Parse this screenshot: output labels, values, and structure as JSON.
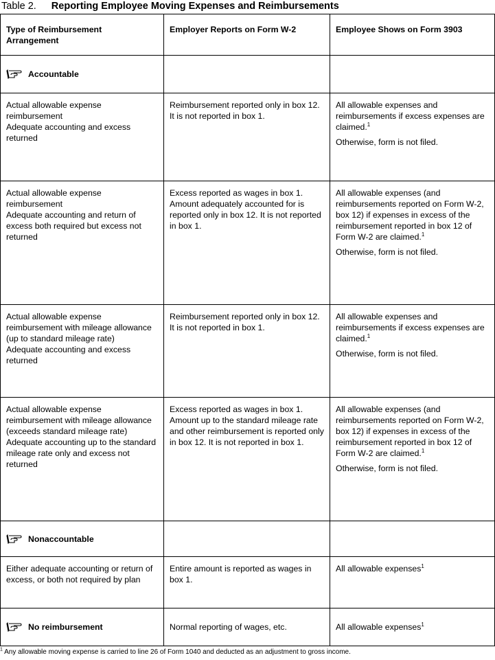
{
  "title": {
    "number": "Table 2.",
    "name": "Reporting Employee Moving Expenses and Reimbursements"
  },
  "columns": [
    "Type of Reimbursement Arrangement",
    "Employer Reports on Form W-2",
    "Employee Shows on Form 3903"
  ],
  "icon": "pointing-hand-icon",
  "sections": {
    "accountable": "Accountable",
    "nonaccountable": "Nonaccountable",
    "no_reimbursement": {
      "label": "No reimbursement",
      "employer": "Normal reporting of wages, etc.",
      "employee": "All allowable expenses",
      "note": "1"
    }
  },
  "rows": [
    {
      "type": [
        "Actual allowable expense reimbursement",
        "Adequate accounting and excess returned"
      ],
      "employer": "Reimbursement reported only in box 12. It is not reported in box 1.",
      "employee": [
        "All allowable expenses and reimbursements if excess expenses are claimed.",
        "Otherwise, form is not filed."
      ],
      "note": "1"
    },
    {
      "type": [
        "Actual allowable expense reimbursement",
        "Adequate accounting and return of excess both required but excess not returned"
      ],
      "employer": "Excess reported as wages in box 1. Amount adequately accounted for is reported only in box 12. It is not reported in box 1.",
      "employee": [
        "All allowable expenses (and reimbursements reported on Form W-2, box 12) if expenses in excess of the reimbursement reported in box 12 of Form W-2 are claimed.",
        "Otherwise, form is not filed."
      ],
      "note": "1"
    },
    {
      "type": [
        "Actual allowable expense reimbursement with mileage allowance (up to standard mileage rate)",
        "Adequate accounting and excess returned"
      ],
      "employer": "Reimbursement reported only in box 12. It is not reported in box 1.",
      "employee": [
        "All allowable expenses and reimbursements if excess expenses are claimed.",
        "Otherwise, form is not filed."
      ],
      "note": "1"
    },
    {
      "type": [
        "Actual allowable expense reimbursement with mileage allowance (exceeds standard mileage rate)",
        "Adequate accounting up to the standard mileage rate only and excess not returned"
      ],
      "employer": "Excess reported as wages in box 1. Amount up to the standard mileage rate and other reimbursement is reported only in box 12. It is not reported in box 1.",
      "employee": [
        "All allowable expenses (and reimbursements reported on Form W-2, box 12) if expenses in excess of the reimbursement reported in box 12 of Form W-2 are claimed.",
        "Otherwise, form is not filed."
      ],
      "note": "1"
    },
    {
      "type": [
        "Either adequate accounting or return of excess, or both not required by plan"
      ],
      "employer": "Entire amount is reported as wages in box 1.",
      "employee": [
        "All allowable expenses"
      ],
      "note": "1"
    }
  ],
  "footnote": {
    "mark": "1",
    "text": "Any allowable moving expense is carried to line 26 of Form 1040 and deducted as an adjustment to gross income."
  }
}
